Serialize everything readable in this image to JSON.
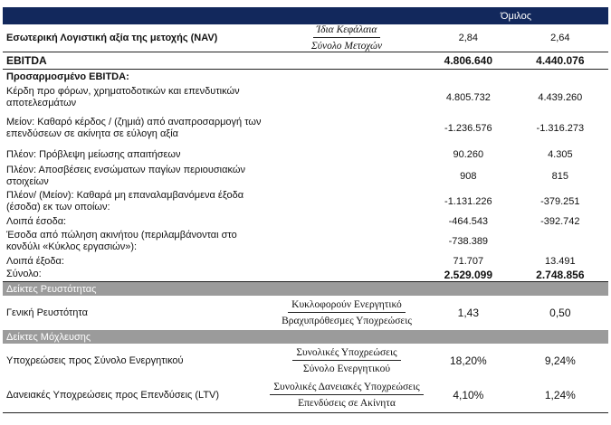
{
  "header": {
    "group": "Όμιλος",
    "accent": "#12285c",
    "band_color": "#9b9b9b"
  },
  "nav": {
    "label": "Εσωτερική Λογιστική αξία της μετοχής (NAV)",
    "numerator": "Ίδια Κεφάλαια",
    "denominator": "Σύνολο Μετοχών",
    "v1": "2,84",
    "v2": "2,64"
  },
  "ebitda": {
    "label": "EBITDA",
    "v1": "4.806.640",
    "v2": "4.440.076"
  },
  "adjusted": {
    "title": "Προσαρμοσμένο EBITDA:",
    "rows": [
      {
        "label": "Κέρδη προ φόρων, χρηματοδοτικών και επενδυτικών αποτελεσμάτων",
        "v1": "4.805.732",
        "v2": "4.439.260"
      },
      {
        "label": "Μείον: Καθαρό κέρδος / (ζημιά) από αναπροσαρμογή των επενδύσεων σε ακίνητα σε εύλογη αξία",
        "v1": "-1.236.576",
        "v2": "-1.316.273"
      },
      {
        "label": "Πλέον: Πρόβλεψη μείωσης απαιτήσεων",
        "v1": "90.260",
        "v2": "4.305"
      },
      {
        "label": "Πλέον: Αποσβέσεις ενσώματων παγίων περιουσιακών στοιχείων",
        "v1": "908",
        "v2": "815"
      },
      {
        "label": "Πλέον/ (Μείον): Καθαρά μη επαναλαμβανόμενα έξοδα (έσοδα) εκ των οποίων:",
        "v1": "-1.131.226",
        "v2": "-379.251"
      },
      {
        "label": "Λοιπά έσοδα:",
        "v1": "-464.543",
        "v2": "-392.742"
      },
      {
        "label": "Έσοδα από πώληση ακινήτου (περιλαμβάνονται στο κονδύλι «Κύκλος εργασιών»):",
        "v1": "-738.389",
        "v2": ""
      },
      {
        "label": "Λοιπά έξοδα:",
        "v1": "71.707",
        "v2": "13.491"
      }
    ],
    "total": {
      "label": "Σύνολο:",
      "v1": "2.529.099",
      "v2": "2.748.856"
    }
  },
  "liquidity": {
    "title": "Δείκτες Ρευστότητας",
    "rows": [
      {
        "label": "Γενική Ρευστότητα",
        "numerator": "Κυκλοφορούν Ενεργητικό",
        "denominator": "Βραχυπρόθεσμες Υποχρεώσεις",
        "v1": "1,43",
        "v2": "0,50"
      }
    ]
  },
  "leverage": {
    "title": "Δείκτες Μόχλευσης",
    "rows": [
      {
        "label": "Υποχρεώσεις προς Σύνολο Ενεργητικού",
        "numerator": "Συνολικές Υποχρεώσεις",
        "denominator": "Σύνολο Ενεργητικού",
        "v1": "18,20%",
        "v2": "9,24%"
      },
      {
        "label": "Δανειακές Υποχρεώσεις προς Επενδύσεις (LTV)",
        "numerator": "Συνολικές Δανειακές Υποχρεώσεις",
        "denominator": "Επενδύσεις σε Ακίνητα",
        "v1": "4,10%",
        "v2": "1,24%"
      }
    ]
  }
}
